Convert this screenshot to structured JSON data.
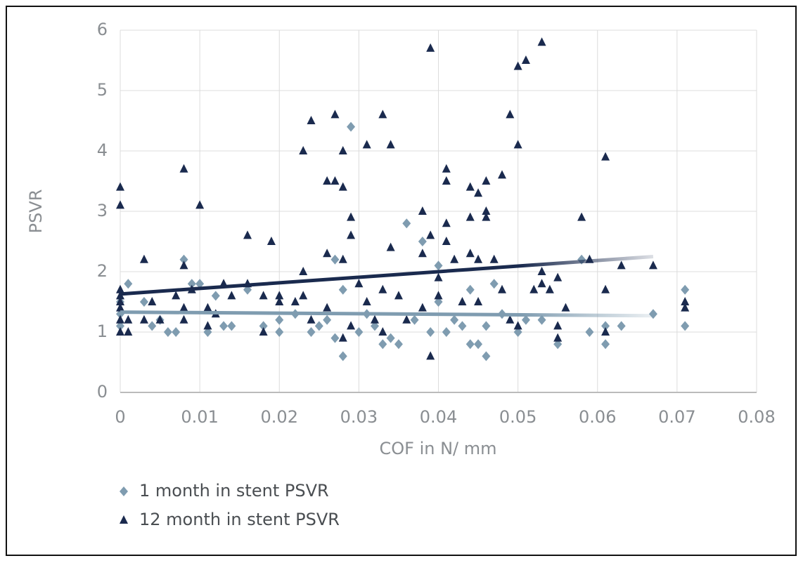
{
  "chart_data": {
    "type": "scatter",
    "x_label": "COF in N/ mm",
    "y_label": "PSVR",
    "xlim": [
      0,
      0.08
    ],
    "xticks": [
      0,
      0.01,
      0.02,
      0.03,
      0.04,
      0.05,
      0.06,
      0.07,
      0.08
    ],
    "ylim": [
      0,
      6
    ],
    "yticks": [
      0,
      1,
      2,
      3,
      4,
      5,
      6
    ],
    "grid": true,
    "series": [
      {
        "name": "1 month in stent PSVR",
        "color": "#7f9cb0",
        "marker": "diamond",
        "x": [
          0,
          0,
          0,
          0.001,
          0.003,
          0.004,
          0.005,
          0.006,
          0.007,
          0.008,
          0.009,
          0.01,
          0.011,
          0.012,
          0.013,
          0.014,
          0.016,
          0.018,
          0.02,
          0.02,
          0.022,
          0.024,
          0.025,
          0.026,
          0.027,
          0.027,
          0.028,
          0.028,
          0.029,
          0.03,
          0.031,
          0.032,
          0.033,
          0.034,
          0.035,
          0.036,
          0.037,
          0.038,
          0.039,
          0.04,
          0.04,
          0.041,
          0.042,
          0.043,
          0.044,
          0.044,
          0.045,
          0.046,
          0.046,
          0.047,
          0.048,
          0.05,
          0.051,
          0.053,
          0.055,
          0.058,
          0.059,
          0.061,
          0.061,
          0.063,
          0.067,
          0.071,
          0.071
        ],
        "values": [
          1.5,
          1.3,
          1.1,
          1.8,
          1.5,
          1.1,
          1.2,
          1.0,
          1.0,
          2.2,
          1.8,
          1.8,
          1.0,
          1.6,
          1.1,
          1.1,
          1.7,
          1.1,
          1.2,
          1.0,
          1.3,
          1.0,
          1.1,
          1.2,
          0.9,
          2.2,
          0.6,
          1.7,
          4.4,
          1.0,
          1.3,
          1.1,
          0.8,
          0.9,
          0.8,
          2.8,
          1.2,
          2.5,
          1.0,
          2.1,
          1.5,
          1.0,
          1.2,
          1.1,
          0.8,
          1.7,
          0.8,
          0.6,
          1.1,
          1.8,
          1.3,
          1.0,
          1.2,
          1.2,
          0.8,
          2.2,
          1.0,
          0.8,
          1.1,
          1.1,
          1.3,
          1.7,
          1.1
        ],
        "trend": {
          "x": [
            0,
            0.067
          ],
          "values": [
            1.33,
            1.27
          ]
        }
      },
      {
        "name": "12 month in stent PSVR",
        "color": "#1a2a4e",
        "marker": "triangle",
        "x": [
          0,
          0,
          0,
          0,
          0,
          0,
          0,
          0,
          0.001,
          0.001,
          0.003,
          0.003,
          0.004,
          0.005,
          0.007,
          0.008,
          0.008,
          0.008,
          0.008,
          0.009,
          0.01,
          0.011,
          0.011,
          0.012,
          0.013,
          0.014,
          0.016,
          0.016,
          0.018,
          0.018,
          0.019,
          0.02,
          0.02,
          0.022,
          0.023,
          0.023,
          0.023,
          0.024,
          0.024,
          0.026,
          0.026,
          0.026,
          0.027,
          0.027,
          0.028,
          0.028,
          0.028,
          0.028,
          0.029,
          0.029,
          0.029,
          0.03,
          0.031,
          0.031,
          0.032,
          0.033,
          0.033,
          0.033,
          0.034,
          0.034,
          0.035,
          0.036,
          0.038,
          0.038,
          0.038,
          0.039,
          0.039,
          0.039,
          0.04,
          0.04,
          0.041,
          0.041,
          0.041,
          0.041,
          0.042,
          0.043,
          0.044,
          0.044,
          0.044,
          0.045,
          0.045,
          0.045,
          0.046,
          0.046,
          0.046,
          0.047,
          0.048,
          0.048,
          0.049,
          0.049,
          0.05,
          0.05,
          0.05,
          0.051,
          0.052,
          0.053,
          0.053,
          0.053,
          0.054,
          0.055,
          0.055,
          0.055,
          0.056,
          0.058,
          0.059,
          0.061,
          0.061,
          0.061,
          0.063,
          0.067,
          0.071,
          0.071
        ],
        "values": [
          3.4,
          3.1,
          1.7,
          1.6,
          1.5,
          1.4,
          1.2,
          1.0,
          1.0,
          1.2,
          2.2,
          1.2,
          1.5,
          1.2,
          1.6,
          3.7,
          2.1,
          1.4,
          1.2,
          1.7,
          3.1,
          1.4,
          1.1,
          1.3,
          1.8,
          1.6,
          2.6,
          1.8,
          1.6,
          1.0,
          2.5,
          1.6,
          1.5,
          1.5,
          4.0,
          2.0,
          1.6,
          4.5,
          1.2,
          3.5,
          2.3,
          1.4,
          4.6,
          3.5,
          4.0,
          3.4,
          2.2,
          0.9,
          2.9,
          2.6,
          1.1,
          1.8,
          4.1,
          1.5,
          1.2,
          4.6,
          1.7,
          1.0,
          4.1,
          2.4,
          1.6,
          1.2,
          3.0,
          2.3,
          1.4,
          5.7,
          2.6,
          0.6,
          1.9,
          1.6,
          3.7,
          3.5,
          2.8,
          2.5,
          2.2,
          1.5,
          3.4,
          2.9,
          2.3,
          3.3,
          2.2,
          1.5,
          3.5,
          3.0,
          2.9,
          2.2,
          3.6,
          1.7,
          4.6,
          1.2,
          5.4,
          4.1,
          1.1,
          5.5,
          1.7,
          5.8,
          2.0,
          1.8,
          1.7,
          1.9,
          1.1,
          0.9,
          1.4,
          2.9,
          2.2,
          3.9,
          1.7,
          1.0,
          2.1,
          2.1,
          1.5,
          1.4
        ],
        "trend": {
          "x": [
            0,
            0.067
          ],
          "values": [
            1.63,
            2.25
          ]
        }
      }
    ]
  }
}
